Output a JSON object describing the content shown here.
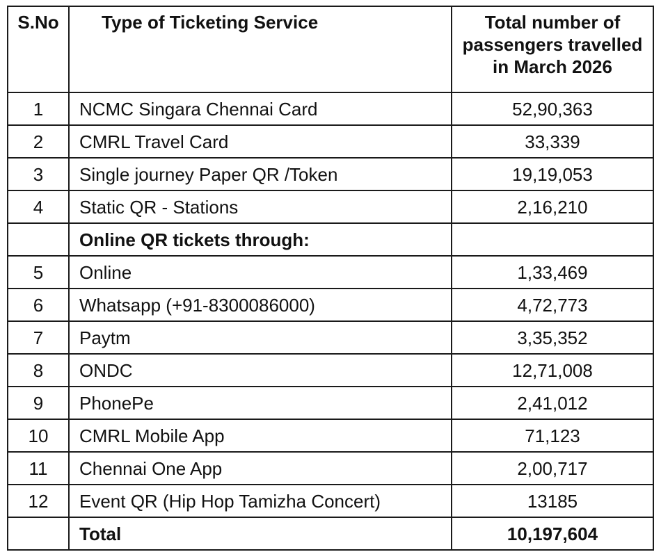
{
  "table": {
    "headers": {
      "sno": "S.No",
      "type": "Type of Ticketing Service",
      "total_line1": "Total number of",
      "total_line2": "passengers travelled",
      "total_line3": "in March 2026"
    },
    "rows": [
      {
        "sno": "1",
        "type": "NCMC Singara Chennai Card",
        "total": "52,90,363"
      },
      {
        "sno": "2",
        "type": "CMRL Travel Card",
        "total": "33,339"
      },
      {
        "sno": "3",
        "type": "Single journey Paper QR /Token",
        "total": "19,19,053"
      },
      {
        "sno": "4",
        "type": "Static QR - Stations",
        "total": "2,16,210"
      },
      {
        "sno": "",
        "type": "Online QR tickets through:",
        "total": ""
      },
      {
        "sno": "5",
        "type": "Online",
        "total": "1,33,469"
      },
      {
        "sno": "6",
        "type": "Whatsapp (+91-8300086000)",
        "total": "4,72,773"
      },
      {
        "sno": "7",
        "type": "Paytm",
        "total": "3,35,352"
      },
      {
        "sno": "8",
        "type": "ONDC",
        "total": "12,71,008"
      },
      {
        "sno": "9",
        "type": "PhonePe",
        "total": "2,41,012"
      },
      {
        "sno": "10",
        "type": "CMRL Mobile App",
        "total": "71,123"
      },
      {
        "sno": "11",
        "type": "Chennai One App",
        "total": "2,00,717"
      },
      {
        "sno": "12",
        "type": "Event QR (Hip Hop Tamizha Concert)",
        "total": "13185"
      }
    ],
    "total_row": {
      "sno": "",
      "label": "Total",
      "value": "10,197,604"
    }
  }
}
